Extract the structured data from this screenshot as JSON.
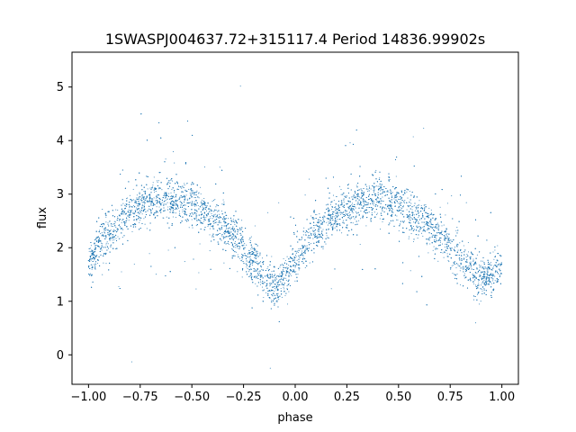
{
  "chart_data": {
    "type": "scatter",
    "title": "1SWASPJ004637.72+315117.4 Period 14836.99902s",
    "xlabel": "phase",
    "ylabel": "flux",
    "xlim": [
      -1.08,
      1.08
    ],
    "ylim": [
      -0.55,
      5.65
    ],
    "xticks": [
      -1.0,
      -0.75,
      -0.5,
      -0.25,
      0.0,
      0.25,
      0.5,
      0.75,
      1.0
    ],
    "xtick_labels": [
      "−1.00",
      "−0.75",
      "−0.50",
      "−0.25",
      "0.00",
      "0.25",
      "0.50",
      "0.75",
      "1.00"
    ],
    "yticks": [
      0,
      1,
      2,
      3,
      4,
      5
    ],
    "ytick_labels": [
      "0",
      "1",
      "2",
      "3",
      "4",
      "5"
    ],
    "grid": false,
    "color": "#1f77b4",
    "series": [
      {
        "trend_x": [
          -1.0,
          -0.9,
          -0.8,
          -0.7,
          -0.6,
          -0.5,
          -0.4,
          -0.3,
          -0.2,
          -0.15,
          -0.1,
          -0.05,
          0.0,
          0.1,
          0.2,
          0.3,
          0.4,
          0.5,
          0.6,
          0.7,
          0.8,
          0.85,
          0.9,
          0.95,
          1.0
        ],
        "trend_y": [
          1.75,
          2.3,
          2.65,
          2.85,
          2.9,
          2.8,
          2.55,
          2.2,
          1.75,
          1.45,
          1.3,
          1.45,
          1.8,
          2.3,
          2.62,
          2.82,
          2.92,
          2.82,
          2.55,
          2.2,
          1.75,
          1.55,
          1.45,
          1.5,
          1.75
        ]
      }
    ]
  }
}
